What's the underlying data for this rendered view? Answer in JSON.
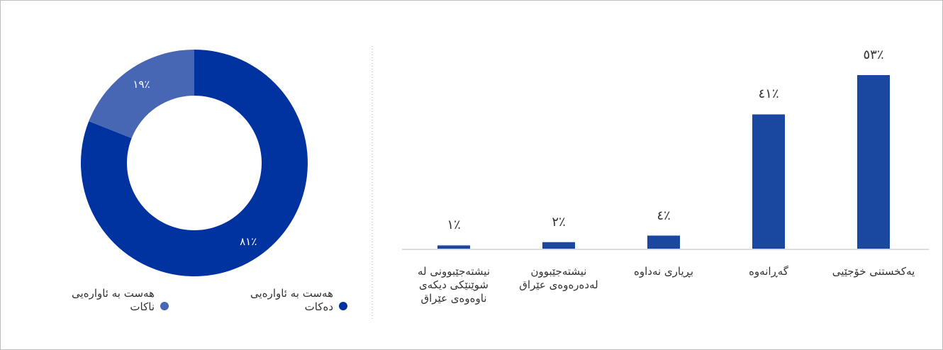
{
  "chart_data": [
    {
      "type": "donut",
      "categories": [
        "هەست بە ئاوارەیی دەکات",
        "هەست بە ئاوارەیی ناکات"
      ],
      "values": [
        81,
        19
      ],
      "value_labels": [
        "٪٨١",
        "٪١٩"
      ],
      "colors": [
        "#0033a0",
        "#4766b3"
      ]
    },
    {
      "type": "bar",
      "categories": [
        "یەکخستنی خۆجێیی",
        "گەڕانەوە",
        "بڕیاری نەداوە",
        "نیشتەجێبوون لەدەرەوەی عێراق",
        "نیشتەجێبوونی لە شوێنێکی دیکەی ناوەوەی عێراق"
      ],
      "values": [
        53,
        41,
        4,
        2,
        1
      ],
      "value_labels": [
        "٪٥٣",
        "٪٤١",
        "٪٤",
        "٪٢",
        "٪١"
      ],
      "color": "#1a47a0"
    }
  ]
}
